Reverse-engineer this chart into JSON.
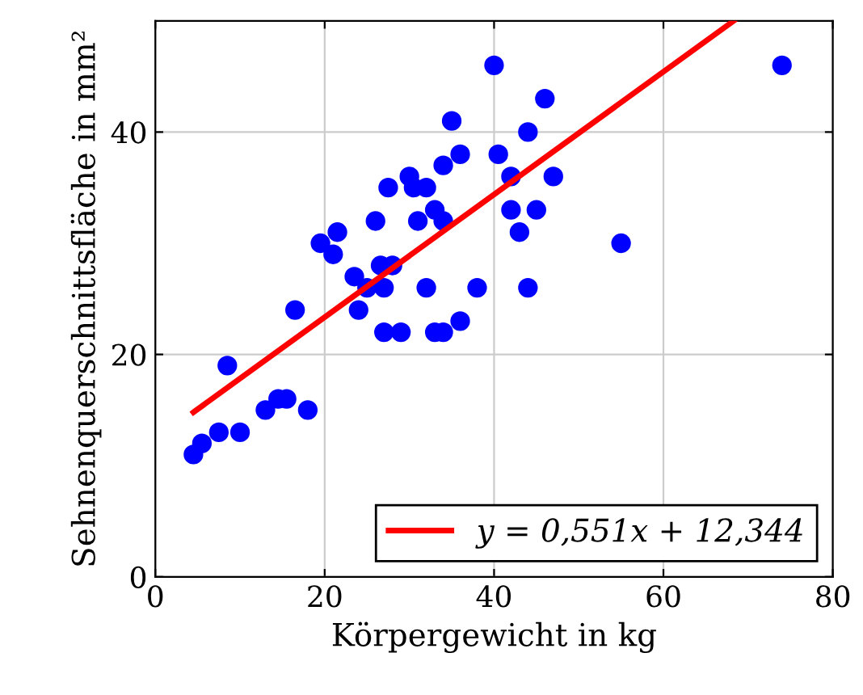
{
  "chart_data": {
    "type": "scatter",
    "xlabel": "Körpergewicht in kg",
    "ylabel": "Sehnenquerschnittsfläche in mm²",
    "xlim": [
      0,
      80
    ],
    "ylim": [
      0,
      50
    ],
    "xticks": [
      0,
      20,
      40,
      60,
      80
    ],
    "yticks": [
      0,
      20,
      40
    ],
    "grid": true,
    "legend": "bottom right",
    "marker": "circle",
    "series": [
      {
        "color": "#0000ff",
        "x": [
          4.5,
          5.5,
          7.5,
          8.5,
          10,
          13,
          14.5,
          15.5,
          16.5,
          18,
          19.5,
          21,
          21.5,
          23.5,
          24,
          25,
          26,
          27,
          27,
          26.6,
          27.5,
          28,
          29,
          30,
          30.5,
          31,
          32,
          32,
          33,
          33,
          34,
          34,
          34,
          35,
          36,
          36,
          38,
          40,
          40.5,
          42,
          42,
          43,
          44,
          44,
          45,
          46,
          47,
          55,
          74
        ],
        "values": [
          11,
          12,
          13,
          19,
          13,
          15,
          16,
          16,
          24,
          15,
          30,
          29,
          31,
          27,
          24,
          26,
          32,
          26,
          22,
          28,
          35,
          28,
          22,
          36,
          35,
          32,
          35,
          26,
          33,
          22,
          37,
          32,
          22,
          41,
          38,
          23,
          26,
          46,
          38,
          36,
          33,
          31,
          40,
          26,
          33,
          43,
          36,
          30,
          46
        ]
      },
      {
        "type": "line",
        "name": "y = 0,551x + 12,344",
        "color": "#ff0000",
        "x": [
          4.5,
          68.3
        ],
        "values": [
          14.8,
          50
        ],
        "line_style": "solid",
        "marker": "none"
      }
    ]
  }
}
